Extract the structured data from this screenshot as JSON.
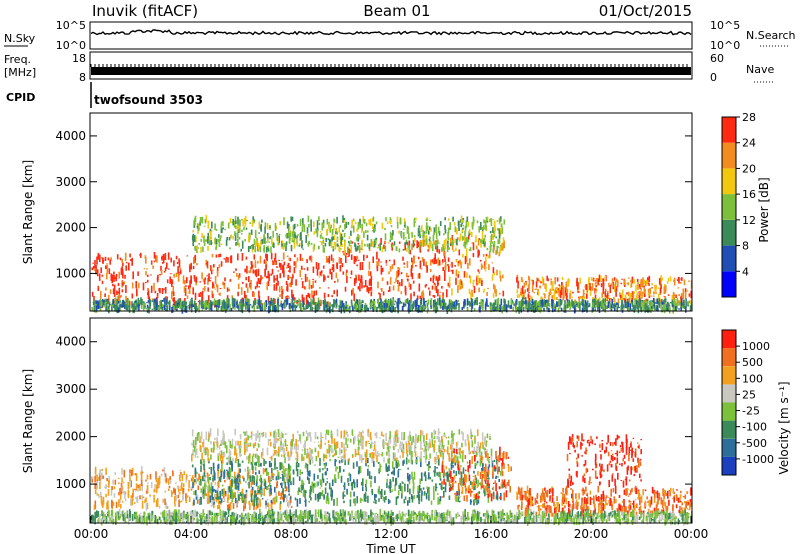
{
  "header": {
    "station": "Inuvik (fitACF)",
    "beam": "Beam 01",
    "date": "01/Oct/2015"
  },
  "top_panels": {
    "nsky_label": "N.Sky",
    "nsky_ticks": [
      "10^5",
      "10^0"
    ],
    "nsearch_label": "N.Search",
    "nsearch_ticks": [
      "10^5",
      "10^0"
    ],
    "freq_label": "Freq.",
    "freq_unit": "[MHz]",
    "freq_ticks": [
      "18",
      "8"
    ],
    "nave_label": "Nave",
    "nave_ticks": [
      "60",
      "0"
    ],
    "cpid_label": "CPID",
    "cpid_value": "twofsound 3503"
  },
  "chart_data": [
    {
      "type": "heatmap",
      "name": "power",
      "ylabel": "Slant Range [km]",
      "ylim": [
        180,
        4500
      ],
      "y_ticks": [
        "1000",
        "2000",
        "3000",
        "4000"
      ],
      "colorbar": {
        "label": "Power [dB]",
        "ticks": [
          "4",
          "8",
          "12",
          "16",
          "20",
          "24",
          "28"
        ],
        "colors": [
          "#0000ff",
          "#1f4fb4",
          "#3a8a5a",
          "#7bbf3a",
          "#f2c80f",
          "#f28c1e",
          "#ff2a10"
        ]
      },
      "bands": [
        {
          "t0": 0.0,
          "t1": 10.0,
          "r0": 300,
          "r1": 1400,
          "level": 6
        },
        {
          "t0": 10.0,
          "t1": 14.3,
          "r0": 450,
          "r1": 1700,
          "level": 6
        },
        {
          "t0": 14.3,
          "t1": 16.5,
          "r0": 500,
          "r1": 1800,
          "level": 5
        },
        {
          "t0": 17.0,
          "t1": 24.0,
          "r0": 350,
          "r1": 900,
          "level": 5
        },
        {
          "t0": 4.0,
          "t1": 16.5,
          "r0": 1500,
          "r1": 2200,
          "level": 3
        },
        {
          "t0": 0.0,
          "t1": 24.0,
          "r0": 200,
          "r1": 400,
          "level": 2
        }
      ]
    },
    {
      "type": "heatmap",
      "name": "velocity",
      "ylabel": "Slant Range [km]",
      "xlabel": "Time UT",
      "ylim": [
        180,
        4500
      ],
      "xlim": [
        0,
        24
      ],
      "x_ticks": [
        "00:00",
        "04:00",
        "08:00",
        "12:00",
        "16:00",
        "20:00",
        "00:00"
      ],
      "y_ticks": [
        "1000",
        "2000",
        "3000",
        "4000"
      ],
      "colorbar": {
        "label": "Velocity [m s⁻¹]",
        "ticks": [
          "1000",
          "500",
          "100",
          "25",
          "-25",
          "-100",
          "-500",
          "-1000"
        ],
        "colors": [
          "#1a3fbf",
          "#2d6e9a",
          "#3a8a5a",
          "#7bc23a",
          "#c8c8c0",
          "#f2a01e",
          "#f07020",
          "#ff2010"
        ]
      },
      "bands": [
        {
          "t0": 0.0,
          "t1": 8.0,
          "r0": 500,
          "r1": 1300,
          "level": 5
        },
        {
          "t0": 4.0,
          "t1": 16.5,
          "r0": 600,
          "r1": 1500,
          "level": 2
        },
        {
          "t0": 4.0,
          "t1": 16.0,
          "r0": 1500,
          "r1": 2100,
          "level": 4
        },
        {
          "t0": 14.0,
          "t1": 16.8,
          "r0": 700,
          "r1": 1700,
          "level": 6
        },
        {
          "t0": 17.0,
          "t1": 24.0,
          "r0": 350,
          "r1": 900,
          "level": 6
        },
        {
          "t0": 19.0,
          "t1": 22.0,
          "r0": 1000,
          "r1": 2000,
          "level": 7
        },
        {
          "t0": 0.0,
          "t1": 24.0,
          "r0": 200,
          "r1": 400,
          "level": 3
        }
      ]
    }
  ]
}
